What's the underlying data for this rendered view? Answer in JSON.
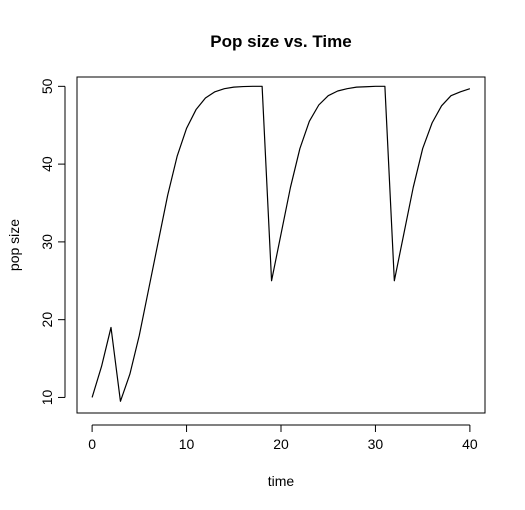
{
  "chart_data": {
    "type": "line",
    "title": "Pop size vs. Time",
    "xlabel": "time",
    "ylabel": "pop size",
    "xlim": [
      -1.6,
      41.6
    ],
    "ylim": [
      8,
      51.2
    ],
    "xticks": [
      0,
      10,
      20,
      30,
      40
    ],
    "yticks": [
      10,
      20,
      30,
      40,
      50
    ],
    "grid": false,
    "legend": "none",
    "line_color": "#000000",
    "series": [
      {
        "x": [
          0,
          1,
          2,
          3,
          4,
          5,
          6,
          7,
          8,
          9,
          10,
          11,
          12,
          13,
          14,
          15,
          16,
          17,
          18,
          19,
          20,
          21,
          22,
          23,
          24,
          25,
          26,
          27,
          28,
          29,
          30,
          31,
          32,
          33,
          34,
          35,
          36,
          37,
          38,
          39,
          40
        ],
        "values": [
          10,
          14,
          19,
          9.5,
          13,
          18,
          24,
          30,
          36,
          41,
          44.6,
          47,
          48.5,
          49.3,
          49.7,
          49.9,
          49.97,
          50,
          50,
          25,
          31,
          37,
          42,
          45.5,
          47.6,
          48.8,
          49.4,
          49.7,
          49.9,
          49.95,
          50,
          50,
          25,
          31,
          37,
          42,
          45.3,
          47.5,
          48.8,
          49.3,
          49.7
        ]
      }
    ]
  }
}
